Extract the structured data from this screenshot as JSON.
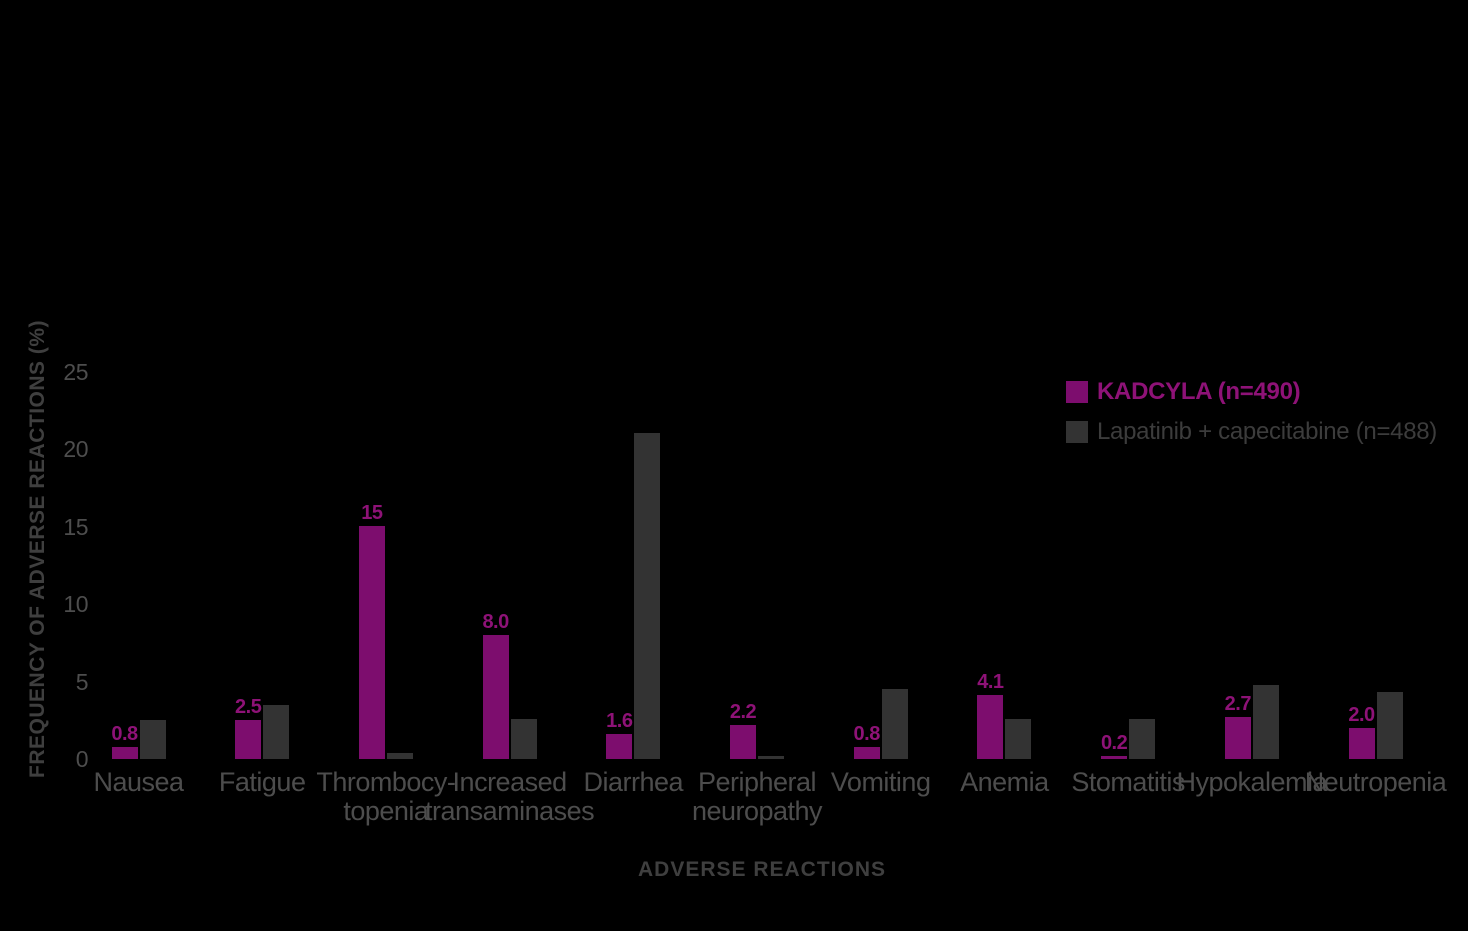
{
  "colors": {
    "background": "#000000",
    "kadcyla_bar": "#7D0D6E",
    "comparator_bar": "#333333",
    "kadcyla_text": "#8E1277",
    "comparator_text": "#3C3C3C",
    "axis_tick_text": "#4D4D4D",
    "category_text": "#4D4D4D",
    "axis_title_text": "#3F3F3F"
  },
  "legend": {
    "items": [
      {
        "label": "KADCYLA (n=490)",
        "series": "kadcyla"
      },
      {
        "label": "Lapatinib + capecitabine (n=488)",
        "series": "comparator"
      }
    ]
  },
  "axes": {
    "y_title": "FREQUENCY OF ADVERSE REACTIONS (%)",
    "x_title": "ADVERSE REACTIONS",
    "y_ticks": [
      0,
      5,
      10,
      15,
      20,
      25
    ]
  },
  "chart_data": {
    "type": "bar",
    "title": "",
    "xlabel": "ADVERSE REACTIONS",
    "ylabel": "FREQUENCY OF ADVERSE REACTIONS (%)",
    "ylim": [
      0,
      25
    ],
    "yticks": [
      0,
      5,
      10,
      15,
      20,
      25
    ],
    "grid": false,
    "legend_position": "upper right",
    "categories": [
      "Nausea",
      "Fatigue",
      "Thrombocy-\ntopenia",
      "Increased\ntransaminases",
      "Diarrhea",
      "Peripheral\nneuropathy",
      "Vomiting",
      "Anemia",
      "Stomatitis",
      "Hypokalemia",
      "Neutropenia"
    ],
    "series": [
      {
        "name": "KADCYLA (n=490)",
        "color": "#7D0D6E",
        "values": [
          0.8,
          2.5,
          15,
          8.0,
          1.6,
          2.2,
          0.8,
          4.1,
          0.2,
          2.7,
          2.0
        ],
        "data_labels": [
          "0.8",
          "2.5",
          "15",
          "8.0",
          "1.6",
          "2.2",
          "0.8",
          "4.1",
          "0.2",
          "2.7",
          "2.0"
        ]
      },
      {
        "name": "Lapatinib + capecitabine (n=488)",
        "color": "#333333",
        "values": [
          2.5,
          3.5,
          0.4,
          2.6,
          21,
          0.2,
          4.5,
          2.6,
          2.6,
          4.8,
          4.3
        ],
        "data_labels": null
      }
    ]
  }
}
